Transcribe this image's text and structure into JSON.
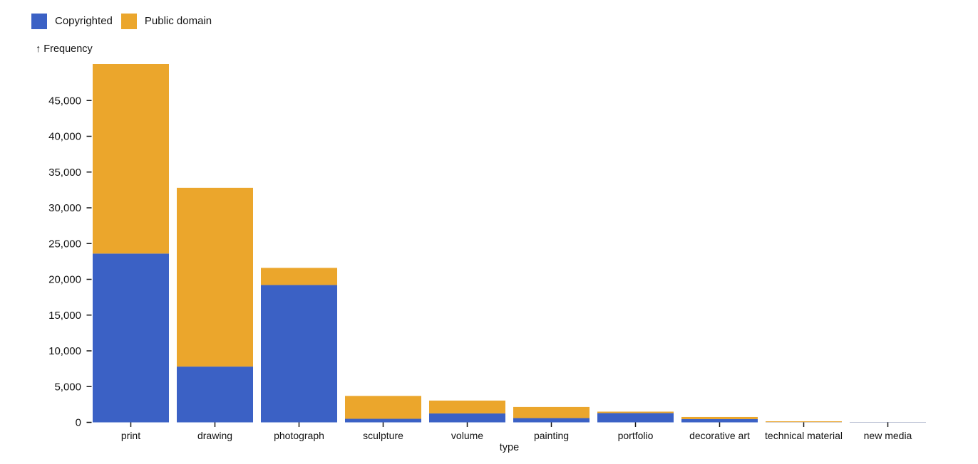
{
  "chart_data": {
    "type": "bar",
    "stacked": true,
    "orientation": "vertical",
    "title": "",
    "xlabel": "type",
    "ylabel": "Frequency",
    "ylabel_arrow": "↑",
    "categories": [
      "print",
      "drawing",
      "photograph",
      "sculpture",
      "volume",
      "painting",
      "portfolio",
      "decorative art",
      "technical material",
      "new media"
    ],
    "series": [
      {
        "name": "Copyrighted",
        "color": "#3b61c5",
        "values": [
          23600,
          7800,
          19200,
          500,
          1250,
          600,
          1300,
          450,
          30,
          40
        ]
      },
      {
        "name": "Public domain",
        "color": "#eba62c",
        "values": [
          26500,
          25000,
          2400,
          3200,
          1800,
          1550,
          200,
          300,
          120,
          10
        ]
      }
    ],
    "y_ticks": [
      0,
      5000,
      10000,
      15000,
      20000,
      25000,
      30000,
      35000,
      40000,
      45000
    ],
    "y_tick_labels": [
      "0",
      "5,000",
      "10,000",
      "15,000",
      "20,000",
      "25,000",
      "30,000",
      "35,000",
      "40,000",
      "45,000"
    ],
    "ylim": [
      0,
      50100
    ],
    "grid": false,
    "legend_position": "top-left",
    "legend": [
      "Copyrighted",
      "Public domain"
    ],
    "axis_text_color": "#141414",
    "tick_color": "#161616",
    "background_color": "#ffffff"
  }
}
